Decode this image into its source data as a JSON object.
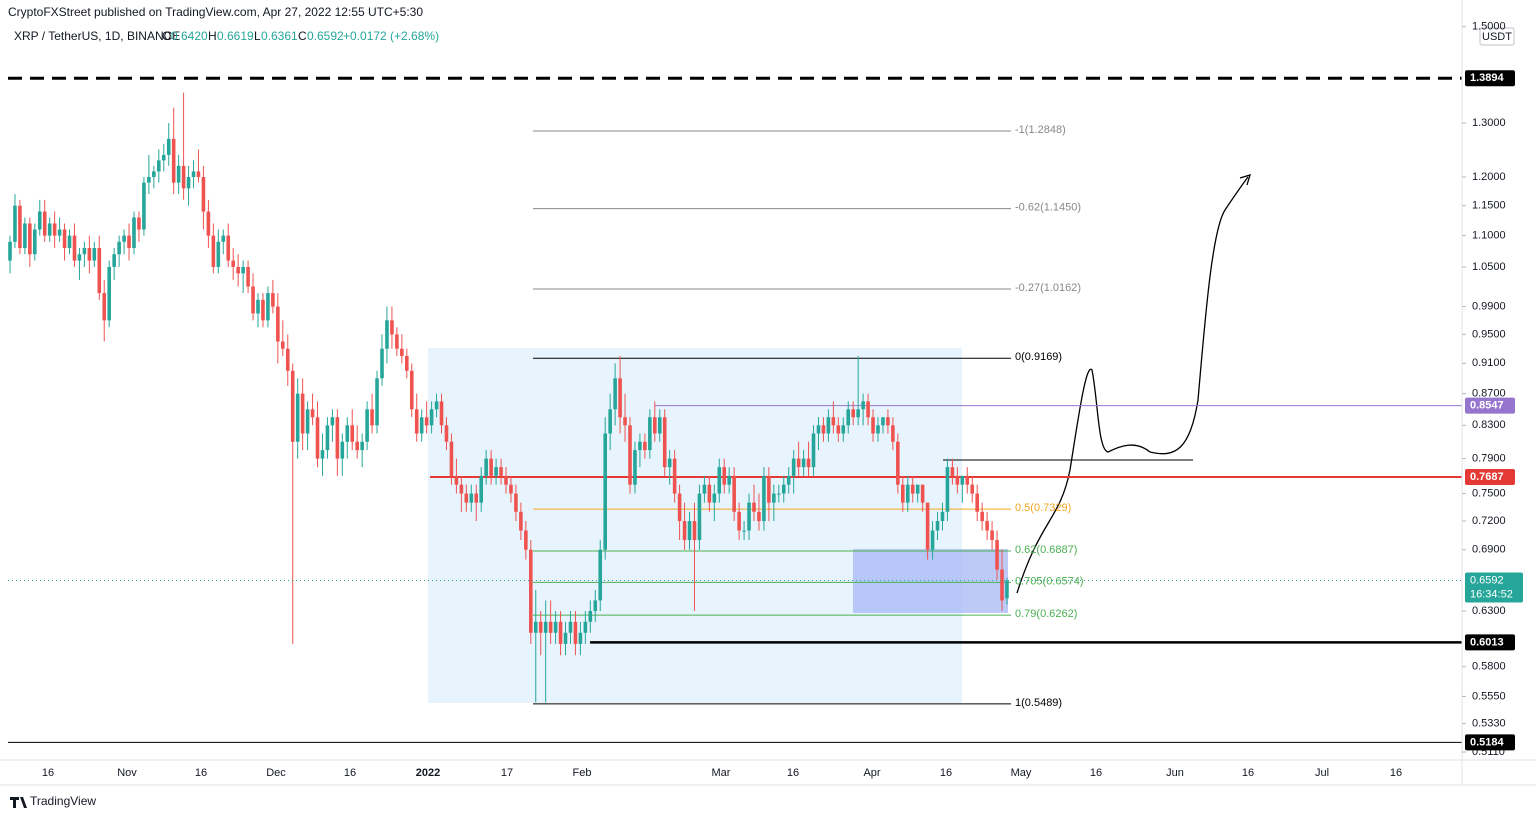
{
  "header": {
    "byline": "CryptoFXStreet published on TradingView.com, Apr 27, 2022 12:55 UTC+5:30",
    "symbol": "XRP / TetherUS, 1D, BINANCE",
    "legend": [
      {
        "key": "O",
        "value": "0.6420"
      },
      {
        "key": "H",
        "value": "0.6619"
      },
      {
        "key": "L",
        "value": "0.6361"
      },
      {
        "key": "C",
        "value": "0.6592"
      }
    ],
    "change": "+0.0172 (+2.68%)",
    "currency": "USDT"
  },
  "footer": {
    "brand": "TradingView"
  },
  "chart_data": {
    "type": "candlestick",
    "log_scale": true,
    "grid": false,
    "up_color": "#26a69a",
    "down_color": "#ef5350",
    "ylim": [
      0.505,
      1.515
    ],
    "yticks": [
      {
        "value": 1.5,
        "label": "1.5000"
      },
      {
        "value": 1.3,
        "label": "1.3000"
      },
      {
        "value": 1.2,
        "label": "1.2000"
      },
      {
        "value": 1.15,
        "label": "1.1500"
      },
      {
        "value": 1.1,
        "label": "1.1000"
      },
      {
        "value": 1.05,
        "label": "1.0500"
      },
      {
        "value": 0.99,
        "label": "0.9900"
      },
      {
        "value": 0.95,
        "label": "0.9500"
      },
      {
        "value": 0.91,
        "label": "0.9100"
      },
      {
        "value": 0.87,
        "label": "0.8700"
      },
      {
        "value": 0.83,
        "label": "0.8300"
      },
      {
        "value": 0.79,
        "label": "0.7900"
      },
      {
        "value": 0.75,
        "label": "0.7500"
      },
      {
        "value": 0.72,
        "label": "0.7200"
      },
      {
        "value": 0.69,
        "label": "0.6900"
      },
      {
        "value": 0.63,
        "label": "0.6300"
      },
      {
        "value": 0.58,
        "label": "0.5800"
      },
      {
        "value": 0.555,
        "label": "0.5550"
      },
      {
        "value": 0.533,
        "label": "0.5330"
      },
      {
        "value": 0.511,
        "label": "0.5110"
      }
    ],
    "x_labels": [
      "16",
      "Nov",
      "16",
      "Dec",
      "16",
      "2022",
      "17",
      "Feb",
      "Mar",
      "16",
      "Apr",
      "16",
      "May",
      "16",
      "Jun",
      "16",
      "Jul",
      "16"
    ],
    "levels": [
      {
        "value": 1.3894,
        "color": "#000000",
        "style": "dashed"
      },
      {
        "value": 0.8547,
        "color": "#9575cd",
        "style": "solid"
      },
      {
        "value": 0.7687,
        "color": "#e53935",
        "style": "solid"
      },
      {
        "value": 0.6013,
        "color": "#000000",
        "style": "solid"
      },
      {
        "value": 0.5184,
        "color": "#000000",
        "style": "solid"
      }
    ],
    "last_price": {
      "value": 0.6592,
      "countdown": "16:34:52",
      "color": "#26a69a"
    },
    "fib_levels": [
      {
        "label": "-1(1.2848)",
        "value": 1.2848,
        "color": "#888888"
      },
      {
        "label": "-0.62(1.1450)",
        "value": 1.145,
        "color": "#888888"
      },
      {
        "label": "-0.27(1.0162)",
        "value": 1.0162,
        "color": "#888888"
      },
      {
        "label": "0(0.9169)",
        "value": 0.9169,
        "color": "#000000"
      },
      {
        "label": "0.5(0.7329)",
        "value": 0.7329,
        "color": "#f5a623"
      },
      {
        "label": "0.62(0.6887)",
        "value": 0.6887,
        "color": "#4caf50"
      },
      {
        "label": "0.705(0.6574)",
        "value": 0.6574,
        "color": "#4caf50"
      },
      {
        "label": "0.79(0.6262)",
        "value": 0.6262,
        "color": "#4caf50"
      },
      {
        "label": "1(0.5489)",
        "value": 0.5489,
        "color": "#000000"
      }
    ],
    "candles": [
      [
        1.06,
        1.1,
        1.04,
        1.09
      ],
      [
        1.09,
        1.17,
        1.08,
        1.15
      ],
      [
        1.15,
        1.16,
        1.07,
        1.08
      ],
      [
        1.08,
        1.13,
        1.07,
        1.12
      ],
      [
        1.12,
        1.13,
        1.05,
        1.07
      ],
      [
        1.07,
        1.12,
        1.06,
        1.11
      ],
      [
        1.11,
        1.16,
        1.1,
        1.14
      ],
      [
        1.14,
        1.16,
        1.09,
        1.1
      ],
      [
        1.1,
        1.13,
        1.09,
        1.12
      ],
      [
        1.12,
        1.14,
        1.08,
        1.1
      ],
      [
        1.1,
        1.13,
        1.09,
        1.11
      ],
      [
        1.11,
        1.12,
        1.06,
        1.08
      ],
      [
        1.08,
        1.11,
        1.07,
        1.1
      ],
      [
        1.1,
        1.12,
        1.05,
        1.06
      ],
      [
        1.06,
        1.08,
        1.03,
        1.07
      ],
      [
        1.07,
        1.09,
        1.05,
        1.08
      ],
      [
        1.08,
        1.1,
        1.04,
        1.06
      ],
      [
        1.06,
        1.09,
        1.05,
        1.08
      ],
      [
        1.08,
        1.1,
        1.0,
        1.01
      ],
      [
        1.01,
        1.03,
        0.94,
        0.97
      ],
      [
        0.97,
        1.06,
        0.96,
        1.05
      ],
      [
        1.05,
        1.08,
        1.03,
        1.07
      ],
      [
        1.07,
        1.1,
        1.05,
        1.09
      ],
      [
        1.09,
        1.11,
        1.07,
        1.1
      ],
      [
        1.1,
        1.12,
        1.06,
        1.08
      ],
      [
        1.08,
        1.14,
        1.07,
        1.13
      ],
      [
        1.13,
        1.14,
        1.09,
        1.11
      ],
      [
        1.11,
        1.2,
        1.1,
        1.19
      ],
      [
        1.19,
        1.24,
        1.17,
        1.2
      ],
      [
        1.2,
        1.22,
        1.18,
        1.21
      ],
      [
        1.21,
        1.25,
        1.19,
        1.23
      ],
      [
        1.23,
        1.26,
        1.21,
        1.24
      ],
      [
        1.24,
        1.3,
        1.22,
        1.27
      ],
      [
        1.27,
        1.33,
        1.17,
        1.19
      ],
      [
        1.19,
        1.24,
        1.17,
        1.22
      ],
      [
        1.22,
        1.36,
        1.16,
        1.18
      ],
      [
        1.18,
        1.22,
        1.15,
        1.2
      ],
      [
        1.2,
        1.23,
        1.18,
        1.21
      ],
      [
        1.21,
        1.25,
        1.19,
        1.2
      ],
      [
        1.2,
        1.22,
        1.11,
        1.14
      ],
      [
        1.14,
        1.16,
        1.08,
        1.1
      ],
      [
        1.1,
        1.12,
        1.04,
        1.05
      ],
      [
        1.05,
        1.11,
        1.04,
        1.09
      ],
      [
        1.09,
        1.11,
        1.07,
        1.1
      ],
      [
        1.1,
        1.12,
        1.05,
        1.06
      ],
      [
        1.06,
        1.08,
        1.03,
        1.05
      ],
      [
        1.05,
        1.07,
        1.02,
        1.04
      ],
      [
        1.04,
        1.06,
        1.01,
        1.05
      ],
      [
        1.05,
        1.06,
        1.01,
        1.02
      ],
      [
        1.02,
        1.04,
        0.97,
        0.98
      ],
      [
        0.98,
        1.01,
        0.96,
        1.0
      ],
      [
        1.0,
        1.01,
        0.96,
        0.97
      ],
      [
        0.97,
        1.02,
        0.96,
        1.01
      ],
      [
        1.01,
        1.03,
        0.98,
        0.99
      ],
      [
        0.99,
        1.01,
        0.91,
        0.94
      ],
      [
        0.94,
        0.97,
        0.92,
        0.93
      ],
      [
        0.93,
        0.95,
        0.88,
        0.9
      ],
      [
        0.9,
        0.91,
        0.6,
        0.81
      ],
      [
        0.81,
        0.89,
        0.79,
        0.87
      ],
      [
        0.87,
        0.89,
        0.8,
        0.82
      ],
      [
        0.82,
        0.86,
        0.8,
        0.85
      ],
      [
        0.85,
        0.87,
        0.83,
        0.84
      ],
      [
        0.84,
        0.86,
        0.78,
        0.79
      ],
      [
        0.79,
        0.82,
        0.77,
        0.8
      ],
      [
        0.8,
        0.84,
        0.79,
        0.83
      ],
      [
        0.83,
        0.85,
        0.81,
        0.84
      ],
      [
        0.84,
        0.85,
        0.77,
        0.79
      ],
      [
        0.79,
        0.82,
        0.77,
        0.81
      ],
      [
        0.81,
        0.84,
        0.79,
        0.83
      ],
      [
        0.83,
        0.85,
        0.8,
        0.81
      ],
      [
        0.81,
        0.83,
        0.79,
        0.8
      ],
      [
        0.8,
        0.82,
        0.78,
        0.81
      ],
      [
        0.81,
        0.86,
        0.8,
        0.85
      ],
      [
        0.85,
        0.87,
        0.82,
        0.83
      ],
      [
        0.83,
        0.9,
        0.82,
        0.89
      ],
      [
        0.89,
        0.95,
        0.88,
        0.93
      ],
      [
        0.93,
        0.99,
        0.91,
        0.97
      ],
      [
        0.97,
        0.99,
        0.93,
        0.95
      ],
      [
        0.95,
        0.96,
        0.92,
        0.93
      ],
      [
        0.93,
        0.95,
        0.91,
        0.92
      ],
      [
        0.92,
        0.93,
        0.89,
        0.9
      ],
      [
        0.9,
        0.91,
        0.84,
        0.85
      ],
      [
        0.85,
        0.87,
        0.81,
        0.82
      ],
      [
        0.82,
        0.85,
        0.81,
        0.84
      ],
      [
        0.84,
        0.86,
        0.82,
        0.83
      ],
      [
        0.83,
        0.86,
        0.82,
        0.85
      ],
      [
        0.85,
        0.87,
        0.84,
        0.86
      ],
      [
        0.86,
        0.87,
        0.82,
        0.83
      ],
      [
        0.83,
        0.84,
        0.8,
        0.81
      ],
      [
        0.81,
        0.82,
        0.76,
        0.77
      ],
      [
        0.77,
        0.79,
        0.75,
        0.76
      ],
      [
        0.76,
        0.77,
        0.73,
        0.75
      ],
      [
        0.75,
        0.76,
        0.73,
        0.74
      ],
      [
        0.74,
        0.76,
        0.73,
        0.75
      ],
      [
        0.75,
        0.76,
        0.72,
        0.74
      ],
      [
        0.74,
        0.78,
        0.73,
        0.77
      ],
      [
        0.77,
        0.8,
        0.76,
        0.79
      ],
      [
        0.79,
        0.8,
        0.76,
        0.77
      ],
      [
        0.77,
        0.79,
        0.76,
        0.78
      ],
      [
        0.78,
        0.79,
        0.76,
        0.77
      ],
      [
        0.77,
        0.78,
        0.75,
        0.76
      ],
      [
        0.76,
        0.77,
        0.74,
        0.75
      ],
      [
        0.75,
        0.76,
        0.72,
        0.73
      ],
      [
        0.73,
        0.74,
        0.7,
        0.71
      ],
      [
        0.71,
        0.72,
        0.68,
        0.69
      ],
      [
        0.69,
        0.7,
        0.6,
        0.61
      ],
      [
        0.61,
        0.65,
        0.55,
        0.62
      ],
      [
        0.62,
        0.63,
        0.59,
        0.61
      ],
      [
        0.61,
        0.64,
        0.55,
        0.62
      ],
      [
        0.62,
        0.64,
        0.6,
        0.61
      ],
      [
        0.61,
        0.63,
        0.6,
        0.62
      ],
      [
        0.62,
        0.63,
        0.59,
        0.6
      ],
      [
        0.6,
        0.62,
        0.59,
        0.61
      ],
      [
        0.61,
        0.63,
        0.6,
        0.62
      ],
      [
        0.62,
        0.63,
        0.59,
        0.6
      ],
      [
        0.6,
        0.62,
        0.59,
        0.61
      ],
      [
        0.61,
        0.63,
        0.6,
        0.62
      ],
      [
        0.62,
        0.64,
        0.61,
        0.63
      ],
      [
        0.63,
        0.65,
        0.62,
        0.64
      ],
      [
        0.64,
        0.7,
        0.63,
        0.69
      ],
      [
        0.69,
        0.84,
        0.68,
        0.82
      ],
      [
        0.82,
        0.87,
        0.8,
        0.85
      ],
      [
        0.85,
        0.91,
        0.83,
        0.89
      ],
      [
        0.89,
        0.92,
        0.82,
        0.84
      ],
      [
        0.84,
        0.87,
        0.81,
        0.83
      ],
      [
        0.83,
        0.84,
        0.75,
        0.76
      ],
      [
        0.76,
        0.81,
        0.75,
        0.8
      ],
      [
        0.8,
        0.82,
        0.78,
        0.81
      ],
      [
        0.81,
        0.82,
        0.79,
        0.8
      ],
      [
        0.8,
        0.85,
        0.79,
        0.84
      ],
      [
        0.84,
        0.86,
        0.81,
        0.82
      ],
      [
        0.82,
        0.85,
        0.81,
        0.84
      ],
      [
        0.84,
        0.85,
        0.77,
        0.78
      ],
      [
        0.78,
        0.8,
        0.76,
        0.79
      ],
      [
        0.79,
        0.8,
        0.74,
        0.75
      ],
      [
        0.75,
        0.76,
        0.7,
        0.72
      ],
      [
        0.72,
        0.74,
        0.69,
        0.7
      ],
      [
        0.7,
        0.73,
        0.69,
        0.72
      ],
      [
        0.72,
        0.74,
        0.63,
        0.7
      ],
      [
        0.7,
        0.76,
        0.69,
        0.75
      ],
      [
        0.75,
        0.77,
        0.74,
        0.76
      ],
      [
        0.76,
        0.77,
        0.73,
        0.74
      ],
      [
        0.74,
        0.76,
        0.72,
        0.75
      ],
      [
        0.75,
        0.79,
        0.74,
        0.78
      ],
      [
        0.78,
        0.79,
        0.75,
        0.76
      ],
      [
        0.76,
        0.78,
        0.75,
        0.77
      ],
      [
        0.77,
        0.78,
        0.72,
        0.73
      ],
      [
        0.73,
        0.74,
        0.7,
        0.71
      ],
      [
        0.71,
        0.72,
        0.7,
        0.71
      ],
      [
        0.71,
        0.75,
        0.7,
        0.74
      ],
      [
        0.74,
        0.76,
        0.72,
        0.73
      ],
      [
        0.73,
        0.75,
        0.71,
        0.72
      ],
      [
        0.72,
        0.78,
        0.71,
        0.77
      ],
      [
        0.77,
        0.78,
        0.72,
        0.74
      ],
      [
        0.74,
        0.76,
        0.72,
        0.75
      ],
      [
        0.75,
        0.76,
        0.74,
        0.75
      ],
      [
        0.75,
        0.77,
        0.74,
        0.76
      ],
      [
        0.76,
        0.78,
        0.75,
        0.77
      ],
      [
        0.77,
        0.8,
        0.75,
        0.79
      ],
      [
        0.79,
        0.81,
        0.77,
        0.78
      ],
      [
        0.78,
        0.8,
        0.77,
        0.79
      ],
      [
        0.79,
        0.81,
        0.77,
        0.78
      ],
      [
        0.78,
        0.83,
        0.77,
        0.82
      ],
      [
        0.82,
        0.84,
        0.8,
        0.83
      ],
      [
        0.83,
        0.84,
        0.81,
        0.82
      ],
      [
        0.82,
        0.85,
        0.81,
        0.84
      ],
      [
        0.84,
        0.86,
        0.82,
        0.83
      ],
      [
        0.83,
        0.84,
        0.81,
        0.82
      ],
      [
        0.82,
        0.84,
        0.81,
        0.83
      ],
      [
        0.83,
        0.86,
        0.82,
        0.85
      ],
      [
        0.85,
        0.86,
        0.83,
        0.84
      ],
      [
        0.84,
        0.92,
        0.83,
        0.85
      ],
      [
        0.85,
        0.87,
        0.83,
        0.86
      ],
      [
        0.86,
        0.87,
        0.83,
        0.84
      ],
      [
        0.84,
        0.85,
        0.81,
        0.82
      ],
      [
        0.82,
        0.84,
        0.81,
        0.83
      ],
      [
        0.83,
        0.84,
        0.82,
        0.84
      ],
      [
        0.84,
        0.85,
        0.82,
        0.83
      ],
      [
        0.83,
        0.84,
        0.8,
        0.81
      ],
      [
        0.81,
        0.82,
        0.75,
        0.76
      ],
      [
        0.76,
        0.77,
        0.73,
        0.74
      ],
      [
        0.74,
        0.77,
        0.73,
        0.76
      ],
      [
        0.76,
        0.77,
        0.74,
        0.75
      ],
      [
        0.75,
        0.76,
        0.74,
        0.76
      ],
      [
        0.76,
        0.76,
        0.73,
        0.74
      ],
      [
        0.74,
        0.74,
        0.68,
        0.69
      ],
      [
        0.69,
        0.72,
        0.68,
        0.71
      ],
      [
        0.71,
        0.73,
        0.7,
        0.72
      ],
      [
        0.72,
        0.74,
        0.71,
        0.73
      ],
      [
        0.73,
        0.79,
        0.72,
        0.78
      ],
      [
        0.78,
        0.79,
        0.76,
        0.77
      ],
      [
        0.77,
        0.78,
        0.75,
        0.76
      ],
      [
        0.76,
        0.77,
        0.74,
        0.77
      ],
      [
        0.77,
        0.78,
        0.75,
        0.76
      ],
      [
        0.76,
        0.77,
        0.74,
        0.75
      ],
      [
        0.75,
        0.76,
        0.72,
        0.73
      ],
      [
        0.73,
        0.74,
        0.71,
        0.72
      ],
      [
        0.72,
        0.73,
        0.7,
        0.71
      ],
      [
        0.71,
        0.72,
        0.69,
        0.7
      ],
      [
        0.7,
        0.71,
        0.66,
        0.67
      ],
      [
        0.67,
        0.69,
        0.63,
        0.64
      ],
      [
        0.642,
        0.6619,
        0.6361,
        0.6592
      ]
    ]
  }
}
